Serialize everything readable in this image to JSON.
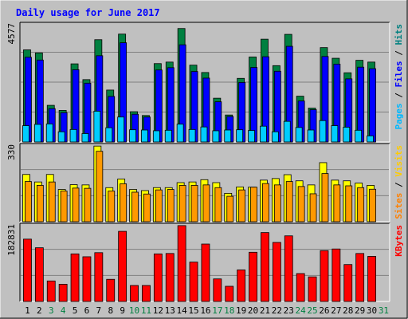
{
  "title": "Daily usage for June 2017",
  "colors": {
    "background": "#c0c0c0",
    "panel": "#c0c0c0",
    "title": "#0000ff",
    "hits_fill": "#008040",
    "hits_label": "#008080",
    "files_fill": "#0000ff",
    "files_label": "#0000ff",
    "pages_fill": "#00ccff",
    "pages_label": "#00b8ff",
    "visits_fill": "#ffff00",
    "visits_label": "#ffcc00",
    "sites_fill": "#ff9900",
    "sites_label": "#ff8000",
    "kbytes_fill": "#ff0000",
    "kbytes_label": "#ff0000",
    "day_weekday": "#000000",
    "day_weekend": "#008040"
  },
  "chart_data": [
    {
      "type": "bar",
      "panel": "hits-files-pages",
      "ylabel_max": "4577",
      "ymax": 4577,
      "label_parts": [
        "Pages",
        "Files",
        "Hits"
      ],
      "categories": [
        "1",
        "2",
        "3",
        "4",
        "5",
        "6",
        "7",
        "8",
        "9",
        "10",
        "11",
        "12",
        "13",
        "14",
        "15",
        "16",
        "17",
        "18",
        "19",
        "20",
        "21",
        "22",
        "23",
        "24",
        "25",
        "26",
        "27",
        "28",
        "29",
        "30",
        "31"
      ],
      "series": [
        {
          "name": "Hits",
          "values": [
            3620,
            3500,
            1440,
            1240,
            3070,
            2450,
            4020,
            2040,
            4240,
            1190,
            1040,
            3080,
            3140,
            4460,
            3020,
            2730,
            1720,
            1060,
            2500,
            3340,
            4040,
            3000,
            4230,
            1800,
            1330,
            3710,
            3290,
            2720,
            3210,
            3140,
            0
          ]
        },
        {
          "name": "Files",
          "values": [
            3330,
            3220,
            1310,
            1150,
            2840,
            2310,
            3390,
            1790,
            3900,
            1090,
            980,
            2830,
            2920,
            3820,
            2770,
            2510,
            1580,
            1000,
            2340,
            2930,
            3350,
            2780,
            3760,
            1610,
            1270,
            3360,
            3060,
            2480,
            2940,
            2880,
            0
          ]
        },
        {
          "name": "Pages",
          "values": [
            640,
            690,
            710,
            400,
            490,
            330,
            1210,
            560,
            980,
            480,
            470,
            440,
            460,
            700,
            490,
            590,
            440,
            470,
            480,
            450,
            620,
            400,
            810,
            570,
            470,
            840,
            640,
            580,
            460,
            240,
            0
          ]
        }
      ]
    },
    {
      "type": "bar",
      "panel": "visits-sites",
      "ylabel_max": "330",
      "ymax": 330,
      "label_parts": [
        "Sites",
        "Visits"
      ],
      "categories": [
        "1",
        "2",
        "3",
        "4",
        "5",
        "6",
        "7",
        "8",
        "9",
        "10",
        "11",
        "12",
        "13",
        "14",
        "15",
        "16",
        "17",
        "18",
        "19",
        "20",
        "21",
        "22",
        "23",
        "24",
        "25",
        "26",
        "27",
        "28",
        "29",
        "30",
        "31"
      ],
      "series": [
        {
          "name": "Visits",
          "values": [
            208,
            175,
            208,
            142,
            163,
            162,
            333,
            150,
            188,
            142,
            137,
            150,
            150,
            172,
            175,
            185,
            172,
            125,
            153,
            152,
            183,
            190,
            207,
            180,
            162,
            260,
            183,
            180,
            170,
            160,
            0
          ]
        },
        {
          "name": "Sites",
          "values": [
            177,
            160,
            175,
            135,
            148,
            147,
            310,
            135,
            167,
            130,
            122,
            140,
            142,
            160,
            160,
            162,
            150,
            112,
            140,
            152,
            168,
            162,
            177,
            155,
            123,
            212,
            162,
            158,
            150,
            143,
            0
          ]
        }
      ]
    },
    {
      "type": "bar",
      "panel": "kbytes",
      "ylabel_max": "182831",
      "ymax": 182831,
      "label_parts": [
        "KBytes"
      ],
      "categories": [
        "1",
        "2",
        "3",
        "4",
        "5",
        "6",
        "7",
        "8",
        "9",
        "10",
        "11",
        "12",
        "13",
        "14",
        "15",
        "16",
        "17",
        "18",
        "19",
        "20",
        "21",
        "22",
        "23",
        "24",
        "25",
        "26",
        "27",
        "28",
        "29",
        "30",
        "31"
      ],
      "series": [
        {
          "name": "KBytes",
          "values": [
            152000,
            131000,
            50000,
            42000,
            116000,
            109000,
            119000,
            54000,
            171000,
            39000,
            39000,
            116000,
            117000,
            185000,
            96000,
            140000,
            55000,
            37000,
            77000,
            120000,
            168000,
            144000,
            160000,
            68000,
            60000,
            124000,
            128000,
            90000,
            117000,
            110000,
            0
          ]
        }
      ]
    }
  ]
}
